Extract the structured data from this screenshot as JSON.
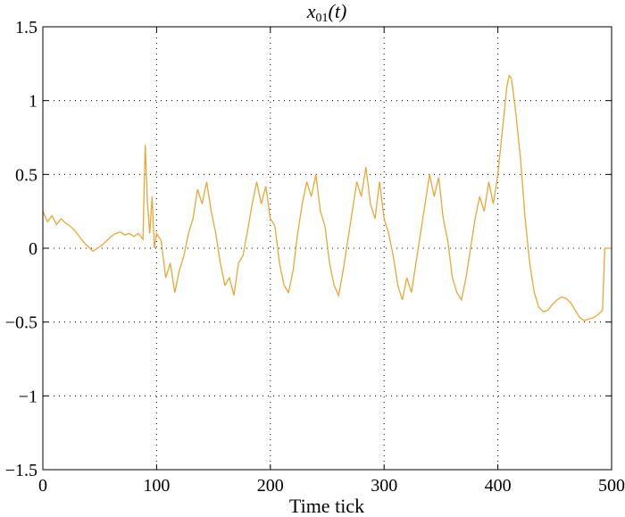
{
  "chart_data": {
    "type": "line",
    "title": {
      "var": "x",
      "sub": "01",
      "arg": "(t)"
    },
    "xlabel": "Time tick",
    "ylabel": "",
    "xlim": [
      0,
      500
    ],
    "ylim": [
      -1.5,
      1.5
    ],
    "xticks": [
      0,
      100,
      200,
      300,
      400,
      500
    ],
    "xtick_labels": [
      "0",
      "100",
      "200",
      "300",
      "400",
      "500"
    ],
    "yticks": [
      -1.5,
      -1,
      -0.5,
      0,
      0.5,
      1,
      1.5
    ],
    "ytick_labels": [
      "−1.5",
      "−1",
      "−0.5",
      "0",
      "0.5",
      "1",
      "1.5"
    ],
    "grid": true,
    "legend": "none",
    "color": "#E8A736",
    "series": [
      {
        "x": [
          0,
          4,
          8,
          12,
          16,
          20,
          24,
          28,
          32,
          36,
          40,
          44,
          48,
          52,
          56,
          60,
          64,
          68,
          72,
          76,
          80,
          84,
          88,
          90,
          92,
          94,
          96,
          98,
          100,
          104,
          108,
          112,
          116,
          120,
          124,
          128,
          132,
          136,
          140,
          144,
          148,
          152,
          156,
          160,
          164,
          168,
          172,
          176,
          180,
          184,
          188,
          192,
          196,
          200,
          204,
          208,
          212,
          216,
          220,
          224,
          228,
          232,
          236,
          240,
          244,
          248,
          252,
          256,
          260,
          264,
          268,
          272,
          276,
          280,
          284,
          288,
          292,
          296,
          300,
          304,
          308,
          312,
          316,
          320,
          324,
          328,
          332,
          336,
          340,
          344,
          348,
          352,
          356,
          360,
          364,
          368,
          372,
          376,
          380,
          384,
          388,
          392,
          396,
          400,
          404,
          408,
          410,
          412,
          416,
          420,
          424,
          428,
          432,
          436,
          440,
          444,
          448,
          452,
          456,
          460,
          464,
          468,
          472,
          476,
          480,
          484,
          488,
          492,
          494,
          496,
          500
        ],
        "y": [
          0.25,
          0.18,
          0.22,
          0.16,
          0.2,
          0.17,
          0.15,
          0.12,
          0.08,
          0.04,
          0.01,
          -0.02,
          0.0,
          0.02,
          0.05,
          0.08,
          0.1,
          0.11,
          0.09,
          0.1,
          0.08,
          0.1,
          0.06,
          0.7,
          0.3,
          0.1,
          0.35,
          0.0,
          0.1,
          0.05,
          -0.2,
          -0.1,
          -0.3,
          -0.15,
          -0.05,
          0.1,
          0.2,
          0.4,
          0.3,
          0.45,
          0.25,
          0.1,
          -0.1,
          -0.25,
          -0.2,
          -0.32,
          -0.1,
          -0.05,
          0.12,
          0.3,
          0.45,
          0.3,
          0.42,
          0.2,
          0.15,
          -0.1,
          -0.25,
          -0.3,
          -0.15,
          0.1,
          0.3,
          0.45,
          0.35,
          0.5,
          0.25,
          0.15,
          -0.1,
          -0.25,
          -0.32,
          -0.15,
          0.05,
          0.25,
          0.45,
          0.35,
          0.55,
          0.3,
          0.2,
          0.45,
          0.2,
          0.1,
          -0.05,
          -0.25,
          -0.35,
          -0.2,
          -0.3,
          -0.1,
          0.1,
          0.3,
          0.5,
          0.35,
          0.48,
          0.2,
          0.05,
          -0.2,
          -0.3,
          -0.35,
          -0.2,
          0.0,
          0.2,
          0.35,
          0.25,
          0.45,
          0.3,
          0.5,
          0.8,
          1.1,
          1.17,
          1.15,
          0.9,
          0.6,
          0.2,
          -0.1,
          -0.3,
          -0.4,
          -0.43,
          -0.42,
          -0.38,
          -0.35,
          -0.33,
          -0.34,
          -0.37,
          -0.42,
          -0.47,
          -0.49,
          -0.48,
          -0.47,
          -0.45,
          -0.42,
          0.0,
          0.0,
          0.0
        ]
      }
    ]
  }
}
